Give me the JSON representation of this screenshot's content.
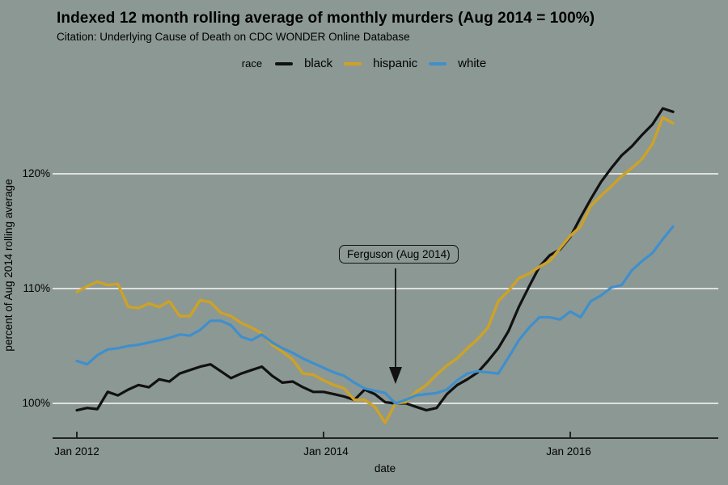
{
  "header": {
    "title": "Indexed 12 month rolling average of monthly murders (Aug 2014 = 100%)",
    "subtitle": "Citation: Underlying Cause of Death on CDC WONDER Online Database"
  },
  "legend": {
    "label": "race",
    "items": [
      {
        "label": "black",
        "color": "#111111"
      },
      {
        "label": "hispanic",
        "color": "#CDA226"
      },
      {
        "label": "white",
        "color": "#3F8FCC"
      }
    ]
  },
  "colors": {
    "background": "#8C9894",
    "gridline": "#E8EAE8",
    "axis": "#222222",
    "annotation": "#111111"
  },
  "chart_data": {
    "type": "line",
    "title": "Indexed 12 month rolling average of monthly murders (Aug 2014 = 100%)",
    "xlabel": "date",
    "ylabel": "percent of Aug 2014 rolling average",
    "x_unit": "month",
    "x_start": "Jan 2012",
    "x_end": "Nov 2016",
    "frequency": "monthly",
    "ylim": [
      96.5,
      127.5
    ],
    "grid": "horizontal",
    "legend_position": "top",
    "x_ticks": [
      {
        "label": "Jan 2012",
        "month": 0
      },
      {
        "label": "Jan 2014",
        "month": 24
      },
      {
        "label": "Jan 2016",
        "month": 48
      }
    ],
    "y_ticks": [
      {
        "label": "100%",
        "value": 100
      },
      {
        "label": "110%",
        "value": 110
      },
      {
        "label": "120%",
        "value": 120
      }
    ],
    "annotation": {
      "text": "Ferguson (Aug 2014)",
      "month": 31,
      "arrow_from_value": 101.9,
      "arrow_to_value": 101.9
    },
    "series": [
      {
        "name": "black",
        "color": "#111111",
        "values": [
          99.4,
          99.6,
          99.5,
          101.0,
          100.7,
          101.2,
          101.6,
          101.4,
          102.1,
          101.9,
          102.6,
          102.9,
          103.2,
          103.4,
          102.8,
          102.2,
          102.6,
          102.9,
          103.2,
          102.4,
          101.8,
          101.9,
          101.4,
          101.0,
          101.0,
          100.8,
          100.6,
          100.3,
          101.2,
          100.8,
          100.1,
          100.0,
          100.0,
          99.7,
          99.4,
          99.6,
          100.8,
          101.6,
          102.1,
          102.7,
          103.7,
          104.8,
          106.3,
          108.4,
          110.2,
          111.9,
          112.9,
          113.4,
          114.5,
          116.2,
          117.8,
          119.3,
          120.5,
          121.6,
          122.4,
          123.4,
          124.3,
          125.7,
          125.4
        ]
      },
      {
        "name": "hispanic",
        "color": "#CDA226",
        "values": [
          109.7,
          110.2,
          110.6,
          110.3,
          110.4,
          108.4,
          108.3,
          108.7,
          108.4,
          108.9,
          107.6,
          107.6,
          109.0,
          108.8,
          107.9,
          107.6,
          107.0,
          106.6,
          106.1,
          105.1,
          104.5,
          103.8,
          102.6,
          102.5,
          102.0,
          101.6,
          101.3,
          100.3,
          100.3,
          99.7,
          98.3,
          100.0,
          100.1,
          101.0,
          101.6,
          102.5,
          103.3,
          103.9,
          104.8,
          105.6,
          106.6,
          108.9,
          109.8,
          110.9,
          111.3,
          111.9,
          112.4,
          113.5,
          114.6,
          115.4,
          117.2,
          118.1,
          118.9,
          119.8,
          120.5,
          121.3,
          122.6,
          124.9,
          124.4
        ]
      },
      {
        "name": "white",
        "color": "#3F8FCC",
        "values": [
          103.7,
          103.4,
          104.2,
          104.7,
          104.8,
          105.0,
          105.1,
          105.3,
          105.5,
          105.7,
          106.0,
          105.9,
          106.4,
          107.2,
          107.2,
          106.8,
          105.8,
          105.5,
          106.0,
          105.3,
          104.8,
          104.4,
          103.9,
          103.5,
          103.1,
          102.7,
          102.4,
          101.8,
          101.3,
          101.1,
          100.9,
          100.0,
          100.3,
          100.7,
          100.8,
          100.9,
          101.2,
          102.0,
          102.6,
          102.8,
          102.7,
          102.6,
          104.0,
          105.5,
          106.6,
          107.5,
          107.5,
          107.3,
          108.0,
          107.5,
          108.9,
          109.4,
          110.1,
          110.3,
          111.6,
          112.4,
          113.1,
          114.3,
          115.4
        ]
      }
    ]
  }
}
